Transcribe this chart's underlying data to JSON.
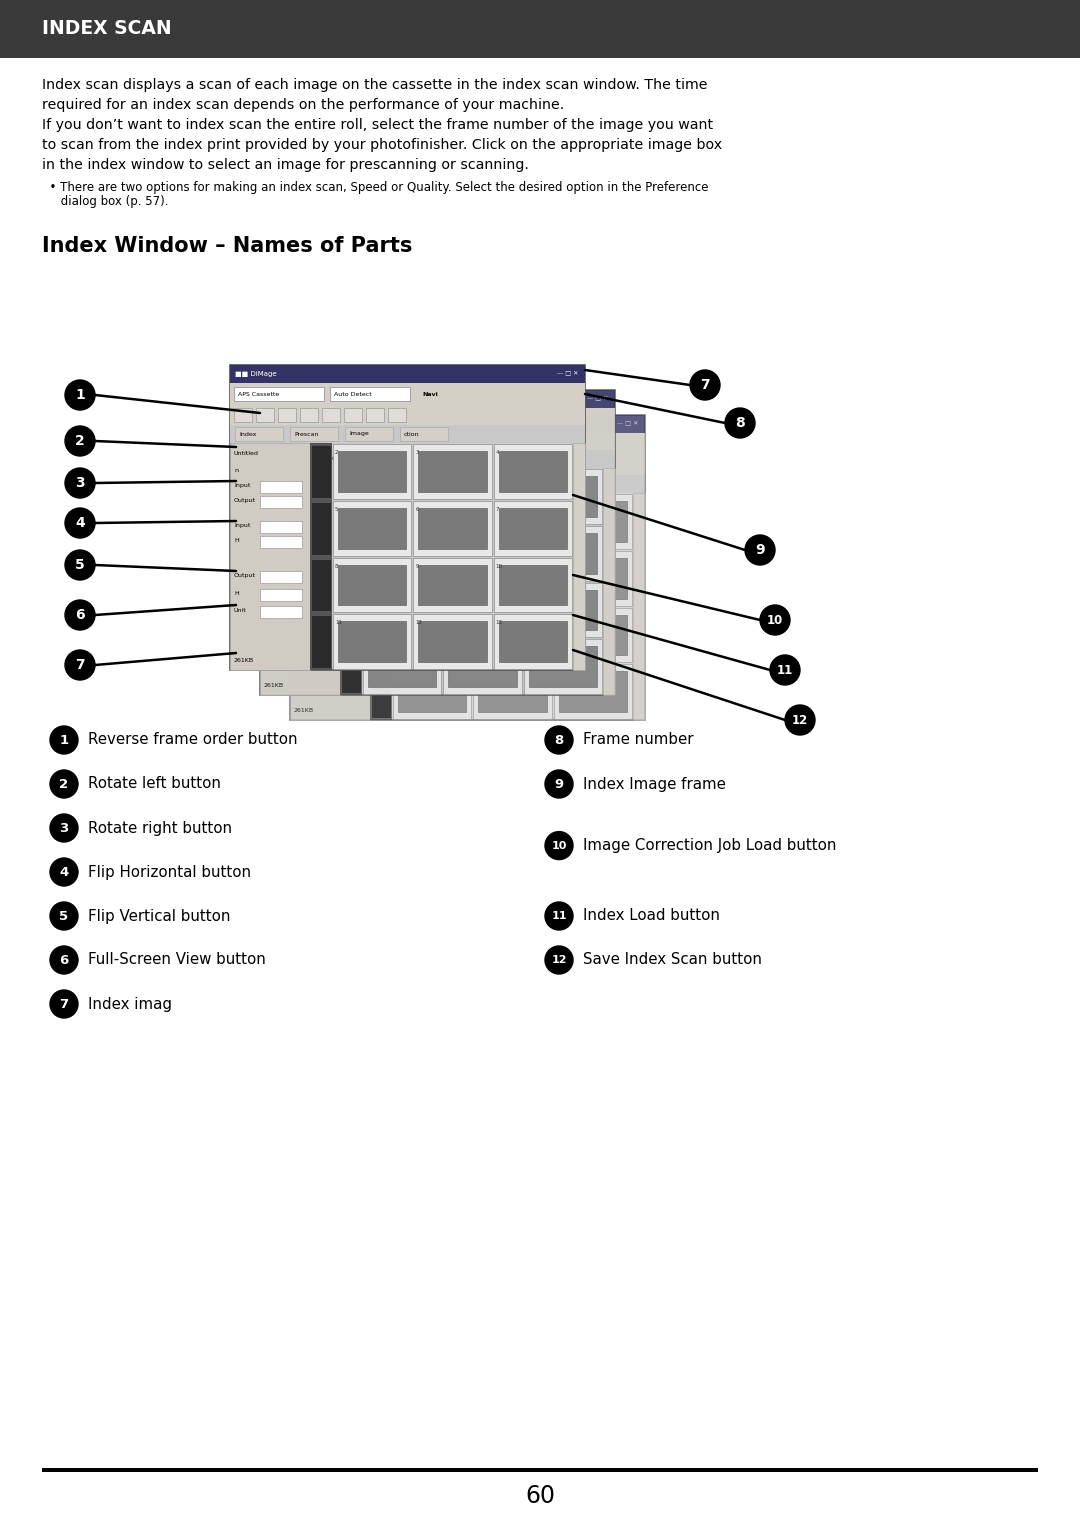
{
  "header_bg": "#3a3a3a",
  "header_text": "INDEX SCAN",
  "header_text_color": "#ffffff",
  "page_bg": "#ffffff",
  "body_text_color": "#000000",
  "section_title": "Index Window – Names of Parts",
  "intro_line1": "Index scan displays a scan of each image on the cassette in the index scan window. The time",
  "intro_line2": "required for an index scan depends on the performance of your machine.",
  "intro_line3": "If you don’t want to index scan the entire roll, select the frame number of the image you want",
  "intro_line4": "to scan from the index print provided by your photofinisher. Click on the appropriate image box",
  "intro_line5": "in the index window to select an image for prescanning or scanning.",
  "bullet_line1": "  • There are two options for making an index scan, Speed or Quality. Select the desired option in the Preference",
  "bullet_line2": "     dialog box (p. 57).",
  "items_left": [
    {
      "num": "1",
      "text": "Reverse frame order button"
    },
    {
      "num": "2",
      "text": "Rotate left button"
    },
    {
      "num": "3",
      "text": "Rotate right button"
    },
    {
      "num": "4",
      "text": "Flip Horizontal button"
    },
    {
      "num": "5",
      "text": "Flip Vertical button"
    },
    {
      "num": "6",
      "text": "Full-Screen View button"
    },
    {
      "num": "7",
      "text": "Index imag"
    }
  ],
  "items_right": [
    {
      "num": "8",
      "text": "Frame number"
    },
    {
      "num": "9",
      "text": "Index Image frame"
    },
    {
      "num": "10",
      "text": "Image Correction Job Load button"
    },
    {
      "num": "11",
      "text": "Index Load button"
    },
    {
      "num": "12",
      "text": "Save Index Scan button"
    }
  ],
  "page_number": "60",
  "footer_line_color": "#000000",
  "win_title_bar_color": "#444444",
  "win_body_color": "#c8c8c8",
  "win_toolbar_color": "#d4d0c8",
  "win_left_panel_color": "#d0ccc4",
  "cell_fill_color": "#555555",
  "cell_border_color": "#333333"
}
